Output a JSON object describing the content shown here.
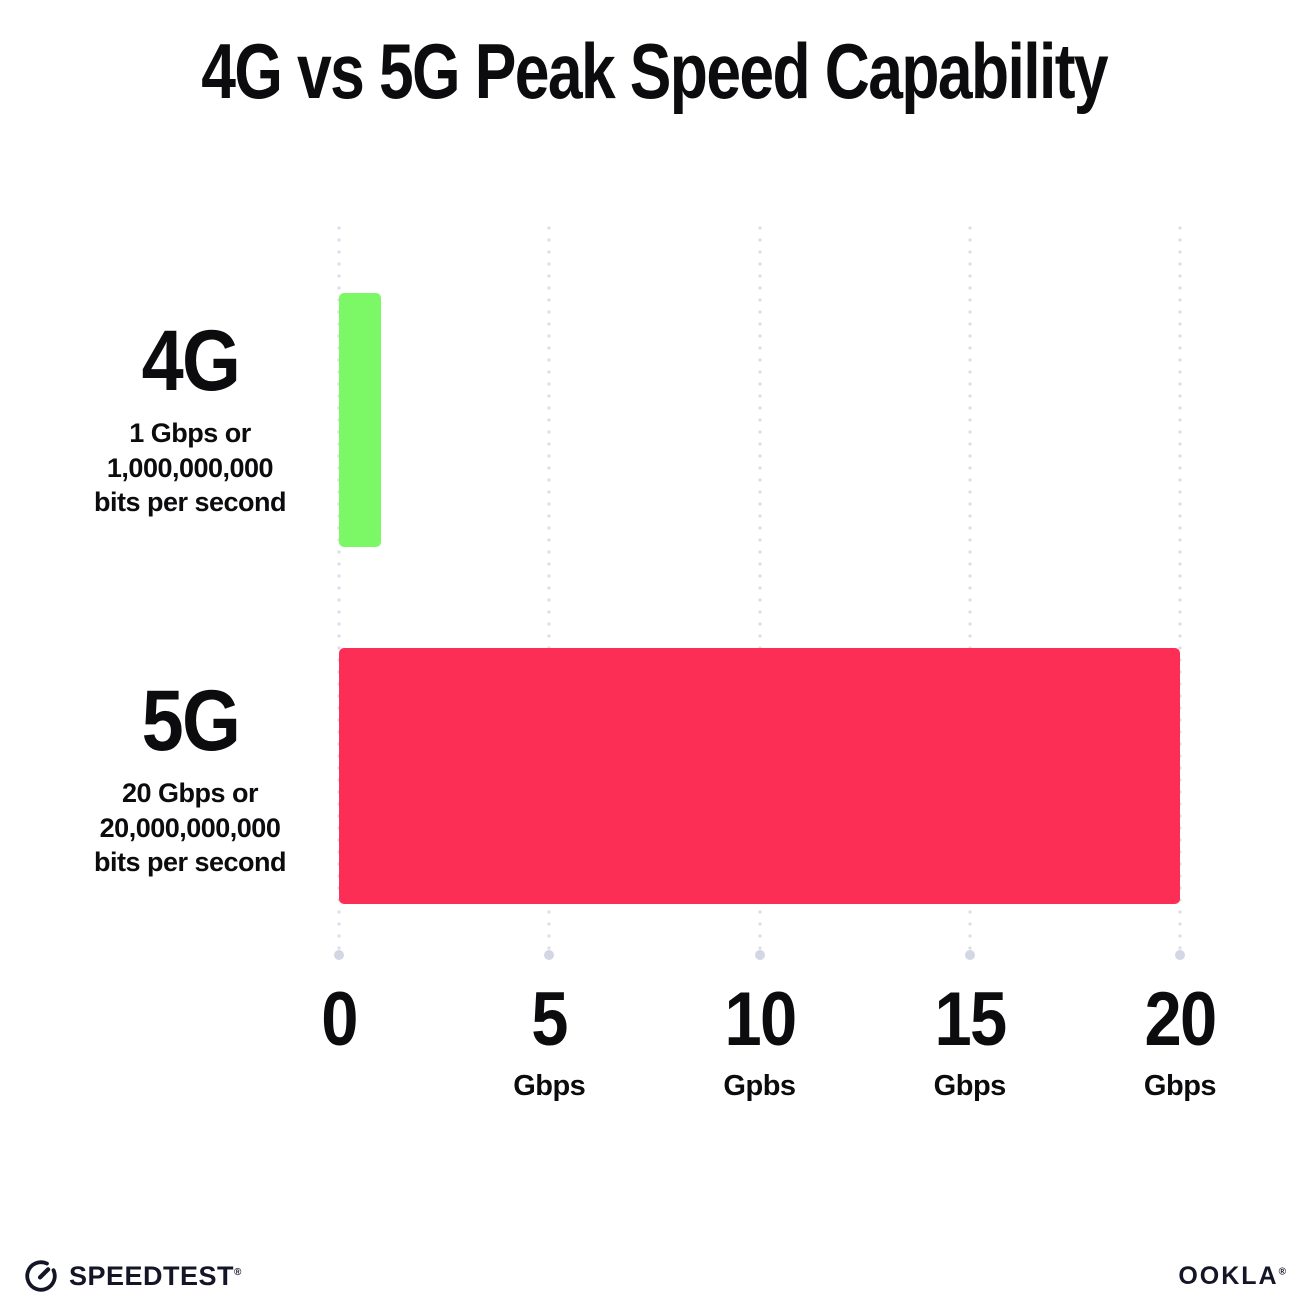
{
  "chart_data": {
    "type": "bar",
    "orientation": "horizontal",
    "title": "4G vs 5G Peak Speed Capability",
    "categories": [
      "4G",
      "5G"
    ],
    "values": [
      1,
      20
    ],
    "value_unit": "Gbps",
    "bar_colors": [
      "#7CF766",
      "#FC2E56"
    ],
    "category_sublabels": [
      [
        "1 Gbps or",
        "1,000,000,000",
        "bits per second"
      ],
      [
        "20 Gbps or",
        "20,000,000,000",
        "bits per second"
      ]
    ],
    "x_ticks": [
      {
        "value": 0,
        "label": "0",
        "unit": ""
      },
      {
        "value": 5,
        "label": "5",
        "unit": "Gbps"
      },
      {
        "value": 10,
        "label": "10",
        "unit": "Gpbs"
      },
      {
        "value": 15,
        "label": "15",
        "unit": "Gbps"
      },
      {
        "value": 20,
        "label": "20",
        "unit": "Gbps"
      }
    ],
    "xlim": [
      0,
      20
    ],
    "grid": "dotted-vertical",
    "gridline_color": "#DCDEE9",
    "legend": "none"
  },
  "footer": {
    "speedtest_label": "SPEEDTEST",
    "speedtest_trademark": "®",
    "ookla_label": "OOKLA",
    "ookla_trademark": "®"
  }
}
